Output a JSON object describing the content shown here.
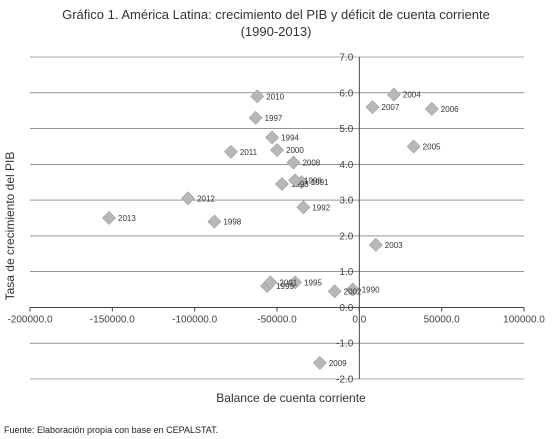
{
  "chart_data": {
    "type": "scatter",
    "title": "Gráfico 1. América Latina: crecimiento del PIB y déficit de cuenta corriente",
    "subtitle": "(1990-2013)",
    "xlabel": "Balance de cuenta corriente",
    "ylabel": "Tasa de crecimiento del PIB",
    "xlim": [
      -200000,
      100000
    ],
    "ylim": [
      -2,
      7
    ],
    "x_ticks": [
      "-200000.0",
      "-150000.0",
      "-100000.0",
      "-50000.0",
      "0.0",
      "50000.0",
      "100000.0"
    ],
    "y_ticks": [
      "-2.0",
      "-1.0",
      "0.0",
      "1.0",
      "2.0",
      "3.0",
      "4.0",
      "5.0",
      "6.0",
      "7.0"
    ],
    "grid": "horizontal",
    "marker_color": "#b8b8b8",
    "points": [
      {
        "label": "1990",
        "x": -4000,
        "y": 0.5
      },
      {
        "label": "1991",
        "x": -35000,
        "y": 3.5
      },
      {
        "label": "1992",
        "x": -34000,
        "y": 2.8
      },
      {
        "label": "1993",
        "x": -47000,
        "y": 3.45
      },
      {
        "label": "1994",
        "x": -53000,
        "y": 4.75
      },
      {
        "label": "1995",
        "x": -39000,
        "y": 0.7
      },
      {
        "label": "1996",
        "x": -39000,
        "y": 3.55
      },
      {
        "label": "1997",
        "x": -63000,
        "y": 5.3
      },
      {
        "label": "1998",
        "x": -88000,
        "y": 2.4
      },
      {
        "label": "1999",
        "x": -56000,
        "y": 0.6
      },
      {
        "label": "2000",
        "x": -50000,
        "y": 4.4
      },
      {
        "label": "2001",
        "x": -54000,
        "y": 0.7
      },
      {
        "label": "2002",
        "x": -15000,
        "y": 0.45
      },
      {
        "label": "2003",
        "x": 10000,
        "y": 1.75
      },
      {
        "label": "2004",
        "x": 21000,
        "y": 5.95
      },
      {
        "label": "2005",
        "x": 33000,
        "y": 4.5
      },
      {
        "label": "2006",
        "x": 44000,
        "y": 5.55
      },
      {
        "label": "2007",
        "x": 8000,
        "y": 5.6
      },
      {
        "label": "2008",
        "x": -40000,
        "y": 4.05
      },
      {
        "label": "2009",
        "x": -24000,
        "y": -1.55
      },
      {
        "label": "2010",
        "x": -62000,
        "y": 5.9
      },
      {
        "label": "2011",
        "x": -78000,
        "y": 4.35
      },
      {
        "label": "2012",
        "x": -104000,
        "y": 3.05
      },
      {
        "label": "2013",
        "x": -152000,
        "y": 2.5
      }
    ]
  },
  "source": "Fuente: Elaboración propia con base en CEPALSTAT."
}
